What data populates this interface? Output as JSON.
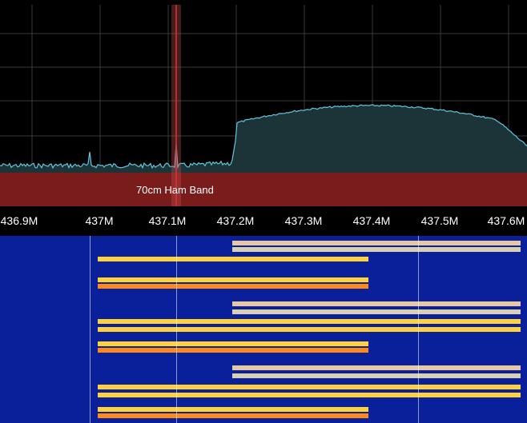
{
  "band": {
    "label": "70cm Ham Band",
    "color": "#7a1c1c"
  },
  "axis": {
    "ticks": [
      "436.9M",
      "437M",
      "437.1M",
      "437.2M",
      "437.3M",
      "437.4M",
      "437.5M",
      "437.6M"
    ]
  },
  "colors": {
    "trace": "#5fc8e0",
    "fill": "#1c3438",
    "grid": "#3a3a3a",
    "marker": "#e03030",
    "wf_bg": "#0a1f9a",
    "wf_hot": "#ffd23a",
    "wf_warm": "#ff8a1a"
  }
}
